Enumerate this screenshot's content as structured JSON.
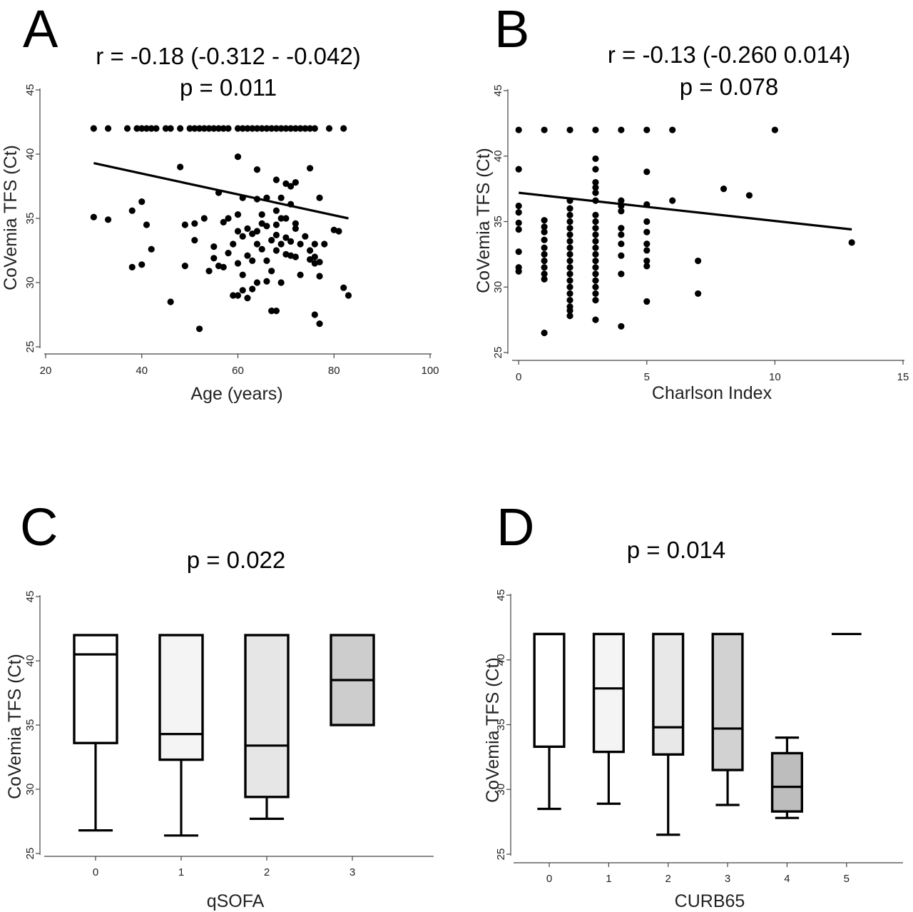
{
  "panels": [
    {
      "label": "A",
      "stat_lines": [
        "r = -0.18 (-0.312 - -0.042)",
        "p = 0.011"
      ]
    },
    {
      "label": "B",
      "stat_lines": [
        "r = -0.13 (-0.260 0.014)",
        "p = 0.078"
      ]
    },
    {
      "label": "C",
      "stat_lines": [
        "p = 0.022"
      ]
    },
    {
      "label": "D",
      "stat_lines": [
        "p = 0.014"
      ]
    }
  ],
  "chart_data": [
    {
      "type": "scatter",
      "xlabel": "Age (years)",
      "ylabel": "CoVemia TFS (Ct)",
      "xlim": [
        20,
        100
      ],
      "ylim": [
        25,
        45
      ],
      "xticks": [
        20,
        40,
        60,
        80,
        100
      ],
      "yticks": [
        25,
        30,
        35,
        40,
        45
      ],
      "fit_line": {
        "x": [
          30,
          83
        ],
        "y": [
          39.3,
          35.0
        ]
      },
      "points": [
        [
          30,
          42
        ],
        [
          33,
          42
        ],
        [
          37,
          42
        ],
        [
          39,
          42
        ],
        [
          40,
          42
        ],
        [
          41,
          42
        ],
        [
          42,
          42
        ],
        [
          43,
          42
        ],
        [
          45,
          42
        ],
        [
          46,
          42
        ],
        [
          48,
          42
        ],
        [
          50,
          42
        ],
        [
          51,
          42
        ],
        [
          52,
          42
        ],
        [
          53,
          42
        ],
        [
          54,
          42
        ],
        [
          55,
          42
        ],
        [
          56,
          42
        ],
        [
          57,
          42
        ],
        [
          58,
          42
        ],
        [
          60,
          42
        ],
        [
          61,
          42
        ],
        [
          62,
          42
        ],
        [
          63,
          42
        ],
        [
          64,
          42
        ],
        [
          65,
          42
        ],
        [
          66,
          42
        ],
        [
          67,
          42
        ],
        [
          68,
          42
        ],
        [
          69,
          42
        ],
        [
          70,
          42
        ],
        [
          71,
          42
        ],
        [
          72,
          42
        ],
        [
          73,
          42
        ],
        [
          74,
          42
        ],
        [
          75,
          42
        ],
        [
          76,
          42
        ],
        [
          79,
          42
        ],
        [
          82,
          42
        ],
        [
          30,
          35.1
        ],
        [
          33,
          34.9
        ],
        [
          38,
          35.6
        ],
        [
          38,
          31.2
        ],
        [
          40,
          36.3
        ],
        [
          40,
          31.4
        ],
        [
          41,
          34.5
        ],
        [
          42,
          32.6
        ],
        [
          46,
          28.5
        ],
        [
          48,
          39.0
        ],
        [
          49,
          34.5
        ],
        [
          49,
          31.3
        ],
        [
          51,
          34.6
        ],
        [
          51,
          33.3
        ],
        [
          52,
          26.4
        ],
        [
          53,
          35.0
        ],
        [
          54,
          30.9
        ],
        [
          55,
          32.8
        ],
        [
          55,
          31.9
        ],
        [
          56,
          31.3
        ],
        [
          56,
          37.0
        ],
        [
          57,
          31.2
        ],
        [
          57,
          34.7
        ],
        [
          58,
          32.3
        ],
        [
          58,
          35.0
        ],
        [
          59,
          29.0
        ],
        [
          59,
          33.0
        ],
        [
          60,
          39.8
        ],
        [
          60,
          35.3
        ],
        [
          60,
          34.0
        ],
        [
          60,
          31.5
        ],
        [
          60,
          29.0
        ],
        [
          61,
          36.6
        ],
        [
          61,
          33.6
        ],
        [
          61,
          30.6
        ],
        [
          61,
          29.4
        ],
        [
          62,
          34.2
        ],
        [
          62,
          32.1
        ],
        [
          62,
          28.8
        ],
        [
          63,
          33.8
        ],
        [
          63,
          31.7
        ],
        [
          63,
          29.5
        ],
        [
          64,
          38.8
        ],
        [
          64,
          36.5
        ],
        [
          64,
          34.0
        ],
        [
          64,
          33.0
        ],
        [
          64,
          30.0
        ],
        [
          65,
          35.3
        ],
        [
          65,
          34.6
        ],
        [
          65,
          32.6
        ],
        [
          66,
          36.6
        ],
        [
          66,
          34.4
        ],
        [
          66,
          31.7
        ],
        [
          66,
          30.1
        ],
        [
          67,
          33.3
        ],
        [
          67,
          30.9
        ],
        [
          67,
          27.8
        ],
        [
          68,
          38.0
        ],
        [
          68,
          35.6
        ],
        [
          68,
          34.5
        ],
        [
          68,
          33.7
        ],
        [
          68,
          32.5
        ],
        [
          68,
          27.8
        ],
        [
          69,
          36.6
        ],
        [
          69,
          35.0
        ],
        [
          69,
          33.0
        ],
        [
          69,
          30.0
        ],
        [
          70,
          37.7
        ],
        [
          70,
          35.0
        ],
        [
          70,
          33.5
        ],
        [
          70,
          32.2
        ],
        [
          71,
          37.5
        ],
        [
          71,
          36.1
        ],
        [
          71,
          33.2
        ],
        [
          71,
          32.1
        ],
        [
          72,
          37.8
        ],
        [
          72,
          34.6
        ],
        [
          72,
          34.2
        ],
        [
          72,
          32.0
        ],
        [
          73,
          30.6
        ],
        [
          73,
          33.0
        ],
        [
          74,
          33.6
        ],
        [
          75,
          38.9
        ],
        [
          75,
          32.5
        ],
        [
          75,
          31.8
        ],
        [
          76,
          33.0
        ],
        [
          76,
          31.5
        ],
        [
          76,
          27.5
        ],
        [
          77,
          36.6
        ],
        [
          77,
          31.6
        ],
        [
          77,
          26.8
        ],
        [
          77,
          30.5
        ],
        [
          78,
          33.0
        ],
        [
          80,
          34.1
        ],
        [
          81,
          34.0
        ],
        [
          82,
          29.6
        ],
        [
          83,
          29.0
        ],
        [
          76,
          32.0
        ]
      ]
    },
    {
      "type": "scatter",
      "xlabel": "Charlson Index",
      "ylabel": "CoVemia TFS (Ct)",
      "xlim": [
        -0.2,
        15
      ],
      "ylim": [
        25,
        45
      ],
      "xticks": [
        0,
        5,
        10,
        15
      ],
      "yticks": [
        25,
        30,
        35,
        40,
        45
      ],
      "fit_line": {
        "x": [
          0,
          13
        ],
        "y": [
          37.2,
          34.4
        ]
      },
      "points": [
        [
          0,
          42
        ],
        [
          1,
          42
        ],
        [
          2,
          42
        ],
        [
          3,
          42
        ],
        [
          4,
          42
        ],
        [
          5,
          42
        ],
        [
          6,
          42
        ],
        [
          10,
          42
        ],
        [
          0,
          39.0
        ],
        [
          0,
          36.2
        ],
        [
          0,
          35.7
        ],
        [
          0,
          34.9
        ],
        [
          0,
          34.4
        ],
        [
          0,
          32.7
        ],
        [
          0,
          31.5
        ],
        [
          0,
          31.2
        ],
        [
          1,
          35.1
        ],
        [
          1,
          34.6
        ],
        [
          1,
          34.2
        ],
        [
          1,
          33.6
        ],
        [
          1,
          33.0
        ],
        [
          1,
          32.5
        ],
        [
          1,
          32.0
        ],
        [
          1,
          31.5
        ],
        [
          1,
          31.0
        ],
        [
          1,
          30.6
        ],
        [
          1,
          26.5
        ],
        [
          2,
          36.6
        ],
        [
          2,
          36.0
        ],
        [
          2,
          35.5
        ],
        [
          2,
          35.0
        ],
        [
          2,
          34.5
        ],
        [
          2,
          34.0
        ],
        [
          2,
          33.5
        ],
        [
          2,
          33.0
        ],
        [
          2,
          32.5
        ],
        [
          2,
          32.0
        ],
        [
          2,
          31.5
        ],
        [
          2,
          31.0
        ],
        [
          2,
          30.5
        ],
        [
          2,
          30.0
        ],
        [
          2,
          29.5
        ],
        [
          2,
          29.0
        ],
        [
          2,
          28.5
        ],
        [
          2,
          28.2
        ],
        [
          2,
          27.8
        ],
        [
          3,
          39.8
        ],
        [
          3,
          39.0
        ],
        [
          3,
          38.0
        ],
        [
          3,
          37.6
        ],
        [
          3,
          37.2
        ],
        [
          3,
          36.6
        ],
        [
          3,
          35.5
        ],
        [
          3,
          35.0
        ],
        [
          3,
          34.5
        ],
        [
          3,
          34.0
        ],
        [
          3,
          33.5
        ],
        [
          3,
          33.0
        ],
        [
          3,
          32.5
        ],
        [
          3,
          32.0
        ],
        [
          3,
          31.5
        ],
        [
          3,
          31.0
        ],
        [
          3,
          30.5
        ],
        [
          3,
          30.0
        ],
        [
          3,
          29.5
        ],
        [
          3,
          29.0
        ],
        [
          3,
          27.5
        ],
        [
          4,
          36.6
        ],
        [
          4,
          36.2
        ],
        [
          4,
          35.8
        ],
        [
          4,
          34.5
        ],
        [
          4,
          34.0
        ],
        [
          4,
          33.3
        ],
        [
          4,
          32.4
        ],
        [
          4,
          31.0
        ],
        [
          4,
          27.0
        ],
        [
          5,
          38.8
        ],
        [
          5,
          36.3
        ],
        [
          5,
          35.0
        ],
        [
          5,
          34.2
        ],
        [
          5,
          33.3
        ],
        [
          5,
          32.8
        ],
        [
          5,
          32.0
        ],
        [
          5,
          31.6
        ],
        [
          5,
          28.9
        ],
        [
          6,
          36.6
        ],
        [
          7,
          32.0
        ],
        [
          7,
          29.5
        ],
        [
          8,
          37.5
        ],
        [
          9,
          37.0
        ],
        [
          13,
          33.4
        ]
      ]
    },
    {
      "type": "box",
      "xlabel": "qSOFA",
      "ylabel": "CoVemia TFS (Ct)",
      "ylim": [
        25,
        45
      ],
      "yticks": [
        25,
        30,
        35,
        40,
        45
      ],
      "categories": [
        "0",
        "1",
        "2",
        "3"
      ],
      "fills": [
        "#ffffff",
        "#f4f4f4",
        "#e6e6e6",
        "#cdcdcd"
      ],
      "boxes": [
        {
          "whisker_low": 26.8,
          "q1": 33.6,
          "median": 40.5,
          "q3": 42.0,
          "whisker_high": 42.0
        },
        {
          "whisker_low": 26.4,
          "q1": 32.3,
          "median": 34.3,
          "q3": 42.0,
          "whisker_high": 42.0
        },
        {
          "whisker_low": 27.7,
          "q1": 29.4,
          "median": 33.4,
          "q3": 42.0,
          "whisker_high": 42.0
        },
        {
          "whisker_low": 35.0,
          "q1": 35.0,
          "median": 38.5,
          "q3": 42.0,
          "whisker_high": 42.0
        }
      ]
    },
    {
      "type": "box",
      "xlabel": "CURB65",
      "ylabel": "CoVemia TFS (Ct)",
      "ylim": [
        25,
        45
      ],
      "yticks": [
        25,
        30,
        35,
        40,
        45
      ],
      "categories": [
        "0",
        "1",
        "2",
        "3",
        "4",
        "5"
      ],
      "fills": [
        "#ffffff",
        "#f4f4f4",
        "#e8e8e8",
        "#d2d2d2",
        "#bdbdbd",
        "#ffffff"
      ],
      "boxes": [
        {
          "whisker_low": 28.5,
          "q1": 33.3,
          "median": 42.0,
          "q3": 42.0,
          "whisker_high": 42.0
        },
        {
          "whisker_low": 28.9,
          "q1": 32.9,
          "median": 37.8,
          "q3": 42.0,
          "whisker_high": 42.0
        },
        {
          "whisker_low": 26.5,
          "q1": 32.7,
          "median": 34.8,
          "q3": 42.0,
          "whisker_high": 42.0
        },
        {
          "whisker_low": 28.8,
          "q1": 31.5,
          "median": 34.7,
          "q3": 42.0,
          "whisker_high": 42.0
        },
        {
          "whisker_low": 27.8,
          "q1": 28.3,
          "median": 30.2,
          "q3": 32.8,
          "whisker_high": 34.0
        },
        {
          "whisker_low": 42.0,
          "q1": 42.0,
          "median": 42.0,
          "q3": 42.0,
          "whisker_high": 42.0
        }
      ]
    }
  ]
}
